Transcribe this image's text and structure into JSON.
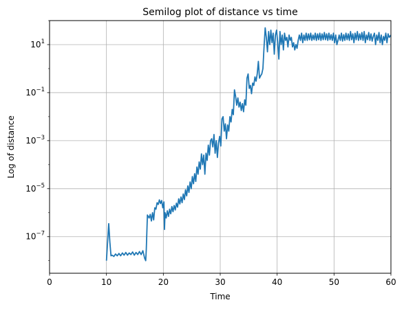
{
  "chart_data": {
    "type": "line",
    "title": "Semilog plot of distance vs time",
    "xlabel": "Time",
    "ylabel": "Log of distance",
    "xscale": "linear",
    "yscale": "log",
    "xlim": [
      0,
      60
    ],
    "ylim": [
      3e-09,
      100
    ],
    "grid": true,
    "line_color": "#1f77b4",
    "x_ticks": [
      {
        "value": 0,
        "label": "0"
      },
      {
        "value": 10,
        "label": "10"
      },
      {
        "value": 20,
        "label": "20"
      },
      {
        "value": 30,
        "label": "30"
      },
      {
        "value": 40,
        "label": "40"
      },
      {
        "value": 50,
        "label": "50"
      },
      {
        "value": 60,
        "label": "60"
      }
    ],
    "y_ticks": [
      {
        "value": 1e-07,
        "base": "10",
        "exp": "−7"
      },
      {
        "value": 1e-05,
        "base": "10",
        "exp": "−5"
      },
      {
        "value": 0.001,
        "base": "10",
        "exp": "−3"
      },
      {
        "value": 0.1,
        "base": "10",
        "exp": "−1"
      },
      {
        "value": 10,
        "base": "10",
        "exp": "1"
      }
    ],
    "series": [
      {
        "points": [
          [
            10.0,
            1e-08
          ],
          [
            10.2,
            6e-08
          ],
          [
            10.4,
            3.5e-07
          ],
          [
            10.6,
            6e-08
          ],
          [
            10.8,
            1.6e-08
          ],
          [
            11.0,
            1.7e-08
          ],
          [
            11.3,
            1.5e-08
          ],
          [
            11.6,
            1.9e-08
          ],
          [
            11.9,
            1.6e-08
          ],
          [
            12.2,
            2e-08
          ],
          [
            12.5,
            1.6e-08
          ],
          [
            12.8,
            2.1e-08
          ],
          [
            13.1,
            1.7e-08
          ],
          [
            13.4,
            2.2e-08
          ],
          [
            13.7,
            1.7e-08
          ],
          [
            14.0,
            2.1e-08
          ],
          [
            14.3,
            1.8e-08
          ],
          [
            14.6,
            2.3e-08
          ],
          [
            14.9,
            1.7e-08
          ],
          [
            15.2,
            2.2e-08
          ],
          [
            15.5,
            1.8e-08
          ],
          [
            15.8,
            2.4e-08
          ],
          [
            16.1,
            1.8e-08
          ],
          [
            16.4,
            2.6e-08
          ],
          [
            16.7,
            1.3e-08
          ],
          [
            16.9,
            1e-08
          ],
          [
            17.0,
            2.8e-08
          ],
          [
            17.2,
            8e-07
          ],
          [
            17.5,
            6e-07
          ],
          [
            17.7,
            8.5e-07
          ],
          [
            17.9,
            4.5e-07
          ],
          [
            18.1,
            1e-06
          ],
          [
            18.3,
            5e-07
          ],
          [
            18.5,
            1.6e-06
          ],
          [
            18.7,
            1.4e-06
          ],
          [
            18.9,
            2.6e-06
          ],
          [
            19.1,
            2.2e-06
          ],
          [
            19.3,
            3.4e-06
          ],
          [
            19.5,
            2.4e-06
          ],
          [
            19.7,
            3.2e-06
          ],
          [
            19.9,
            1.6e-06
          ],
          [
            20.1,
            2.8e-06
          ],
          [
            20.2,
            2e-07
          ],
          [
            20.3,
            1e-06
          ],
          [
            20.5,
            6e-07
          ],
          [
            20.7,
            1.2e-06
          ],
          [
            20.9,
            7e-07
          ],
          [
            21.1,
            1.4e-06
          ],
          [
            21.3,
            9e-07
          ],
          [
            21.5,
            1.8e-06
          ],
          [
            21.7,
            1.1e-06
          ],
          [
            21.9,
            2e-06
          ],
          [
            22.1,
            1.3e-06
          ],
          [
            22.3,
            2.5e-06
          ],
          [
            22.5,
            1.7e-06
          ],
          [
            22.7,
            3.8e-06
          ],
          [
            22.9,
            2.3e-06
          ],
          [
            23.1,
            4.5e-06
          ],
          [
            23.3,
            2.6e-06
          ],
          [
            23.5,
            6e-06
          ],
          [
            23.7,
            3.5e-06
          ],
          [
            23.9,
            9e-06
          ],
          [
            24.1,
            5e-06
          ],
          [
            24.3,
            1.3e-05
          ],
          [
            24.5,
            7e-06
          ],
          [
            24.7,
            1.9e-05
          ],
          [
            24.9,
            1e-05
          ],
          [
            25.1,
            3.2e-05
          ],
          [
            25.3,
            1.6e-05
          ],
          [
            25.5,
            4.2e-05
          ],
          [
            25.7,
            2e-05
          ],
          [
            25.9,
            8e-05
          ],
          [
            26.1,
            4e-05
          ],
          [
            26.3,
            0.00013
          ],
          [
            26.5,
            6.5e-05
          ],
          [
            26.7,
            0.00028
          ],
          [
            26.9,
            0.0001
          ],
          [
            27.1,
            0.00025
          ],
          [
            27.3,
            4e-05
          ],
          [
            27.5,
            0.0003
          ],
          [
            27.7,
            0.00015
          ],
          [
            27.9,
            0.00065
          ],
          [
            28.1,
            0.00025
          ],
          [
            28.3,
            0.001
          ],
          [
            28.5,
            0.0012
          ],
          [
            28.7,
            0.00055
          ],
          [
            28.9,
            0.0018
          ],
          [
            29.1,
            0.0003
          ],
          [
            29.3,
            0.001
          ],
          [
            29.5,
            0.0002
          ],
          [
            29.7,
            0.0008
          ],
          [
            29.9,
            0.0015
          ],
          [
            30.1,
            0.0006
          ],
          [
            30.3,
            0.008
          ],
          [
            30.5,
            0.01
          ],
          [
            30.7,
            0.0025
          ],
          [
            30.9,
            0.005
          ],
          [
            31.1,
            0.0012
          ],
          [
            31.3,
            0.0045
          ],
          [
            31.5,
            0.0025
          ],
          [
            31.7,
            0.01
          ],
          [
            31.9,
            0.006
          ],
          [
            32.1,
            0.02
          ],
          [
            32.3,
            0.012
          ],
          [
            32.5,
            0.13
          ],
          [
            32.7,
            0.07
          ],
          [
            32.9,
            0.03
          ],
          [
            33.1,
            0.06
          ],
          [
            33.3,
            0.025
          ],
          [
            33.5,
            0.04
          ],
          [
            33.7,
            0.018
          ],
          [
            33.9,
            0.035
          ],
          [
            34.1,
            0.016
          ],
          [
            34.3,
            0.05
          ],
          [
            34.5,
            0.03
          ],
          [
            34.7,
            0.4
          ],
          [
            34.9,
            0.6
          ],
          [
            35.1,
            0.15
          ],
          [
            35.3,
            0.2
          ],
          [
            35.5,
            0.09
          ],
          [
            35.7,
            0.25
          ],
          [
            35.9,
            0.2
          ],
          [
            36.1,
            0.45
          ],
          [
            36.3,
            0.3
          ],
          [
            36.5,
            0.6
          ],
          [
            36.7,
            2.0
          ],
          [
            36.9,
            0.4
          ],
          [
            37.1,
            0.5
          ],
          [
            37.3,
            0.6
          ],
          [
            37.5,
            1.0
          ],
          [
            37.7,
            8.0
          ],
          [
            37.9,
            50.0
          ],
          [
            38.1,
            20.0
          ],
          [
            38.3,
            5.0
          ],
          [
            38.5,
            35.0
          ],
          [
            38.7,
            10.0
          ],
          [
            38.9,
            40.0
          ],
          [
            39.1,
            12.0
          ],
          [
            39.3,
            30.0
          ],
          [
            39.5,
            4.0
          ],
          [
            39.7,
            25.0
          ],
          [
            39.9,
            40.0
          ],
          [
            40.1,
            12.0
          ],
          [
            40.3,
            2.5
          ],
          [
            40.5,
            35.0
          ],
          [
            40.7,
            10.0
          ],
          [
            40.9,
            25.0
          ],
          [
            41.1,
            6.0
          ],
          [
            41.3,
            30.0
          ],
          [
            41.5,
            15.0
          ],
          [
            41.7,
            20.0
          ],
          [
            41.9,
            8.0
          ],
          [
            42.1,
            25.0
          ],
          [
            42.3,
            15.0
          ],
          [
            42.5,
            20.0
          ],
          [
            42.7,
            8.0
          ],
          [
            42.9,
            12.0
          ],
          [
            43.1,
            6.0
          ],
          [
            43.3,
            10.0
          ],
          [
            43.5,
            7.0
          ],
          [
            43.7,
            15.0
          ],
          [
            43.9,
            25.0
          ],
          [
            44.1,
            15.0
          ],
          [
            44.3,
            30.0
          ],
          [
            44.5,
            12.0
          ],
          [
            44.7,
            25.0
          ],
          [
            44.9,
            15.0
          ],
          [
            45.1,
            30.0
          ],
          [
            45.3,
            15.0
          ],
          [
            45.5,
            28.0
          ],
          [
            45.7,
            16.0
          ],
          [
            45.9,
            30.0
          ],
          [
            46.1,
            15.0
          ],
          [
            46.3,
            25.0
          ],
          [
            46.5,
            16.0
          ],
          [
            46.7,
            30.0
          ],
          [
            46.9,
            15.0
          ],
          [
            47.1,
            28.0
          ],
          [
            47.3,
            16.0
          ],
          [
            47.5,
            30.0
          ],
          [
            47.7,
            15.0
          ],
          [
            47.9,
            28.0
          ],
          [
            48.1,
            16.0
          ],
          [
            48.3,
            32.0
          ],
          [
            48.5,
            16.0
          ],
          [
            48.7,
            28.0
          ],
          [
            48.9,
            15.0
          ],
          [
            49.1,
            30.0
          ],
          [
            49.3,
            16.0
          ],
          [
            49.5,
            26.0
          ],
          [
            49.7,
            15.0
          ],
          [
            49.9,
            30.0
          ],
          [
            50.1,
            12.0
          ],
          [
            50.3,
            25.0
          ],
          [
            50.5,
            10.0
          ],
          [
            50.7,
            15.0
          ],
          [
            50.9,
            25.0
          ],
          [
            51.1,
            15.0
          ],
          [
            51.3,
            30.0
          ],
          [
            51.5,
            14.0
          ],
          [
            51.7,
            26.0
          ],
          [
            51.9,
            15.0
          ],
          [
            52.1,
            30.0
          ],
          [
            52.3,
            16.0
          ],
          [
            52.5,
            28.0
          ],
          [
            52.7,
            15.0
          ],
          [
            52.9,
            35.0
          ],
          [
            53.1,
            16.0
          ],
          [
            53.3,
            28.0
          ],
          [
            53.5,
            12.0
          ],
          [
            53.7,
            30.0
          ],
          [
            53.9,
            16.0
          ],
          [
            54.1,
            35.0
          ],
          [
            54.3,
            15.0
          ],
          [
            54.5,
            28.0
          ],
          [
            54.7,
            16.0
          ],
          [
            54.9,
            32.0
          ],
          [
            55.1,
            15.0
          ],
          [
            55.3,
            35.0
          ],
          [
            55.5,
            12.0
          ],
          [
            55.7,
            25.0
          ],
          [
            55.9,
            16.0
          ],
          [
            56.1,
            32.0
          ],
          [
            56.3,
            15.0
          ],
          [
            56.5,
            28.0
          ],
          [
            56.7,
            14.0
          ],
          [
            56.9,
            22.0
          ],
          [
            57.1,
            30.0
          ],
          [
            57.3,
            10.0
          ],
          [
            57.5,
            25.0
          ],
          [
            57.7,
            15.0
          ],
          [
            57.9,
            32.0
          ],
          [
            58.1,
            12.0
          ],
          [
            58.3,
            25.0
          ],
          [
            58.5,
            10.0
          ],
          [
            58.7,
            22.0
          ],
          [
            58.9,
            15.0
          ],
          [
            59.1,
            30.0
          ],
          [
            59.3,
            12.0
          ],
          [
            59.5,
            28.0
          ],
          [
            59.7,
            20.0
          ],
          [
            60.0,
            25.0
          ]
        ]
      }
    ]
  }
}
